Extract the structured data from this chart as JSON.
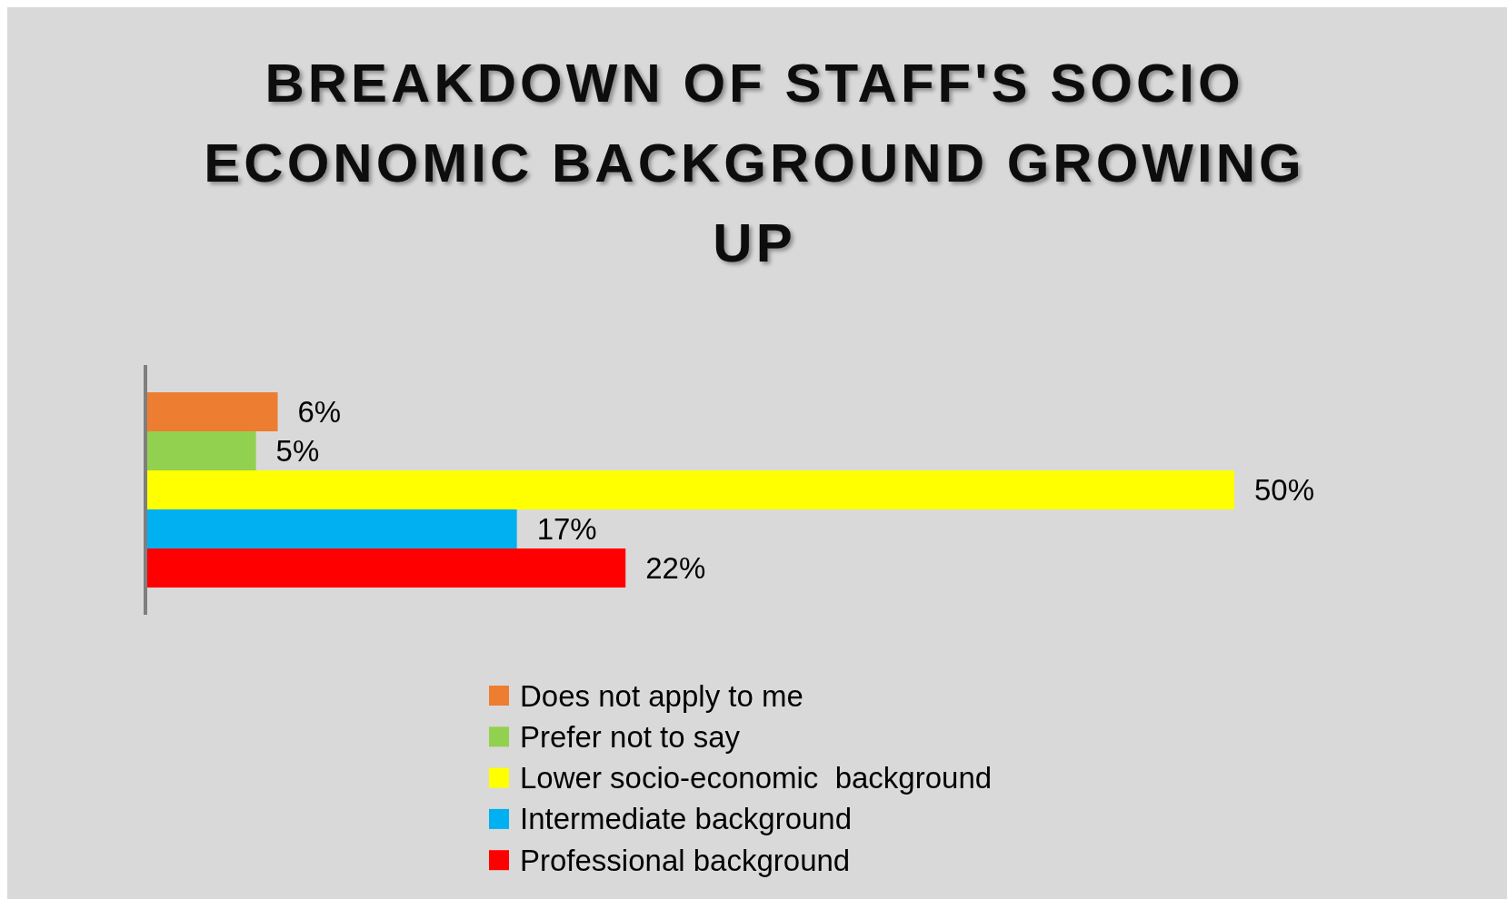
{
  "chart_data": {
    "type": "bar",
    "orientation": "horizontal",
    "title": "BREAKDOWN OF STAFF'S SOCIO ECONOMIC BACKGROUND GROWING UP",
    "categories": [
      null
    ],
    "series": [
      {
        "name": "Does not apply to me",
        "color": "#ed7d31",
        "values": [
          6
        ],
        "value_labels": [
          "6%"
        ]
      },
      {
        "name": "Prefer not to say",
        "color": "#92d050",
        "values": [
          5
        ],
        "value_labels": [
          "5%"
        ]
      },
      {
        "name": "Lower socio-economic  background",
        "color": "#ffff00",
        "values": [
          50
        ],
        "value_labels": [
          "50%"
        ]
      },
      {
        "name": "Intermediate background",
        "color": "#00b0f0",
        "values": [
          17
        ],
        "value_labels": [
          "17%"
        ]
      },
      {
        "name": "Professional background",
        "color": "#ff0000",
        "values": [
          22
        ],
        "value_labels": [
          "22%"
        ]
      }
    ],
    "legend": "bottom"
  }
}
